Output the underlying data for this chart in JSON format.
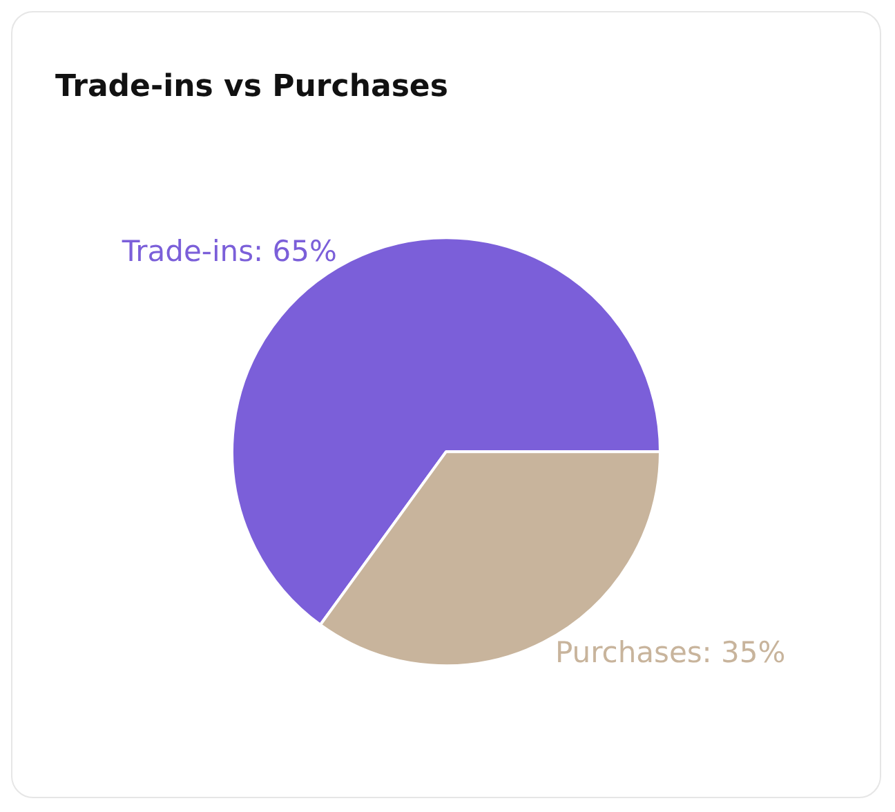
{
  "chart_data": {
    "type": "pie",
    "title": "Trade-ins vs Purchases",
    "categories": [
      "Trade-ins",
      "Purchases"
    ],
    "values": [
      65,
      35
    ],
    "value_labels": [
      "65%",
      "35%"
    ],
    "colors": [
      "#7b5fd9",
      "#c8b49c"
    ]
  }
}
